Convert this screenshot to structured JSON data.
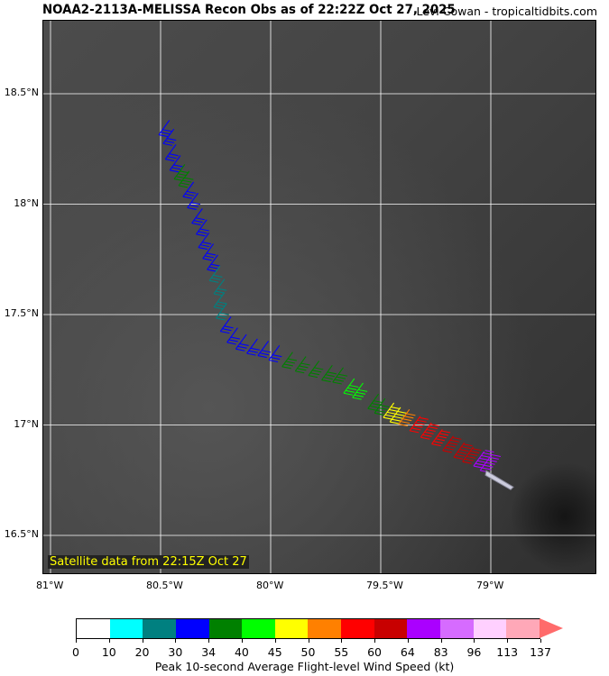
{
  "title": "NOAA2-2113A-MELISSA Recon Obs as of 22:22Z Oct 27, 2025",
  "credit": "Levi Cowan - tropicaltidbits.com",
  "satellite_label": "Satellite data from 22:15Z Oct 27",
  "lat_labels": [
    {
      "v": 18.5,
      "t": "18.5°N"
    },
    {
      "v": 18,
      "t": "18°N"
    },
    {
      "v": 17.5,
      "t": "17.5°N"
    },
    {
      "v": 17,
      "t": "17°N"
    },
    {
      "v": 16.5,
      "t": "16.5°N"
    }
  ],
  "lon_labels": [
    {
      "v": -81,
      "t": "81°W"
    },
    {
      "v": -80.5,
      "t": "80.5°W"
    },
    {
      "v": -80,
      "t": "80°W"
    },
    {
      "v": -79.5,
      "t": "79.5°W"
    },
    {
      "v": -79,
      "t": "79°W"
    }
  ],
  "colorbar": {
    "label": "Peak 10-second Average Flight-level Wind Speed (kt)",
    "ticks": [
      "0",
      "10",
      "20",
      "30",
      "34",
      "40",
      "45",
      "50",
      "55",
      "60",
      "64",
      "83",
      "96",
      "113",
      "137"
    ],
    "colors": [
      "#ffffff",
      "#00ffff",
      "#008080",
      "#0000ff",
      "#008000",
      "#00ff00",
      "#ffff00",
      "#ff8000",
      "#ff0000",
      "#c80000",
      "#aa00ff",
      "#d66bff",
      "#ffd0ff",
      "#ffa8b8"
    ],
    "extend_color": "#ff6b6b"
  },
  "aircraft": {
    "lat": 16.76,
    "lon": -79.0
  },
  "observations": [
    [
      18.38,
      -80.46,
      32
    ],
    [
      18.34,
      -80.44,
      32
    ],
    [
      18.27,
      -80.43,
      32
    ],
    [
      18.22,
      -80.41,
      32
    ],
    [
      18.18,
      -80.39,
      38
    ],
    [
      18.15,
      -80.37,
      36
    ],
    [
      18.1,
      -80.35,
      32
    ],
    [
      18.05,
      -80.33,
      32
    ],
    [
      17.98,
      -80.31,
      32
    ],
    [
      17.93,
      -80.29,
      32
    ],
    [
      17.87,
      -80.28,
      32
    ],
    [
      17.82,
      -80.26,
      32
    ],
    [
      17.77,
      -80.24,
      32
    ],
    [
      17.72,
      -80.23,
      25
    ],
    [
      17.66,
      -80.21,
      25
    ],
    [
      17.6,
      -80.21,
      25
    ],
    [
      17.55,
      -80.2,
      25
    ],
    [
      17.49,
      -80.18,
      32
    ],
    [
      17.44,
      -80.15,
      32
    ],
    [
      17.41,
      -80.11,
      32
    ],
    [
      17.39,
      -80.06,
      32
    ],
    [
      17.38,
      -80.01,
      32
    ],
    [
      17.36,
      -79.96,
      32
    ],
    [
      17.33,
      -79.9,
      37
    ],
    [
      17.31,
      -79.84,
      37
    ],
    [
      17.29,
      -79.78,
      37
    ],
    [
      17.27,
      -79.72,
      37
    ],
    [
      17.26,
      -79.67,
      37
    ],
    [
      17.21,
      -79.62,
      42
    ],
    [
      17.19,
      -79.58,
      42
    ],
    [
      17.14,
      -79.51,
      38
    ],
    [
      17.12,
      -79.48,
      38
    ],
    [
      17.1,
      -79.44,
      47
    ],
    [
      17.08,
      -79.41,
      47
    ],
    [
      17.07,
      -79.37,
      52
    ],
    [
      17.04,
      -79.32,
      57
    ],
    [
      17.01,
      -79.27,
      57
    ],
    [
      16.98,
      -79.22,
      57
    ],
    [
      16.95,
      -79.17,
      62
    ],
    [
      16.92,
      -79.12,
      62
    ],
    [
      16.9,
      -79.08,
      62
    ],
    [
      16.88,
      -79.03,
      70
    ],
    [
      16.86,
      -79.0,
      70
    ]
  ]
}
